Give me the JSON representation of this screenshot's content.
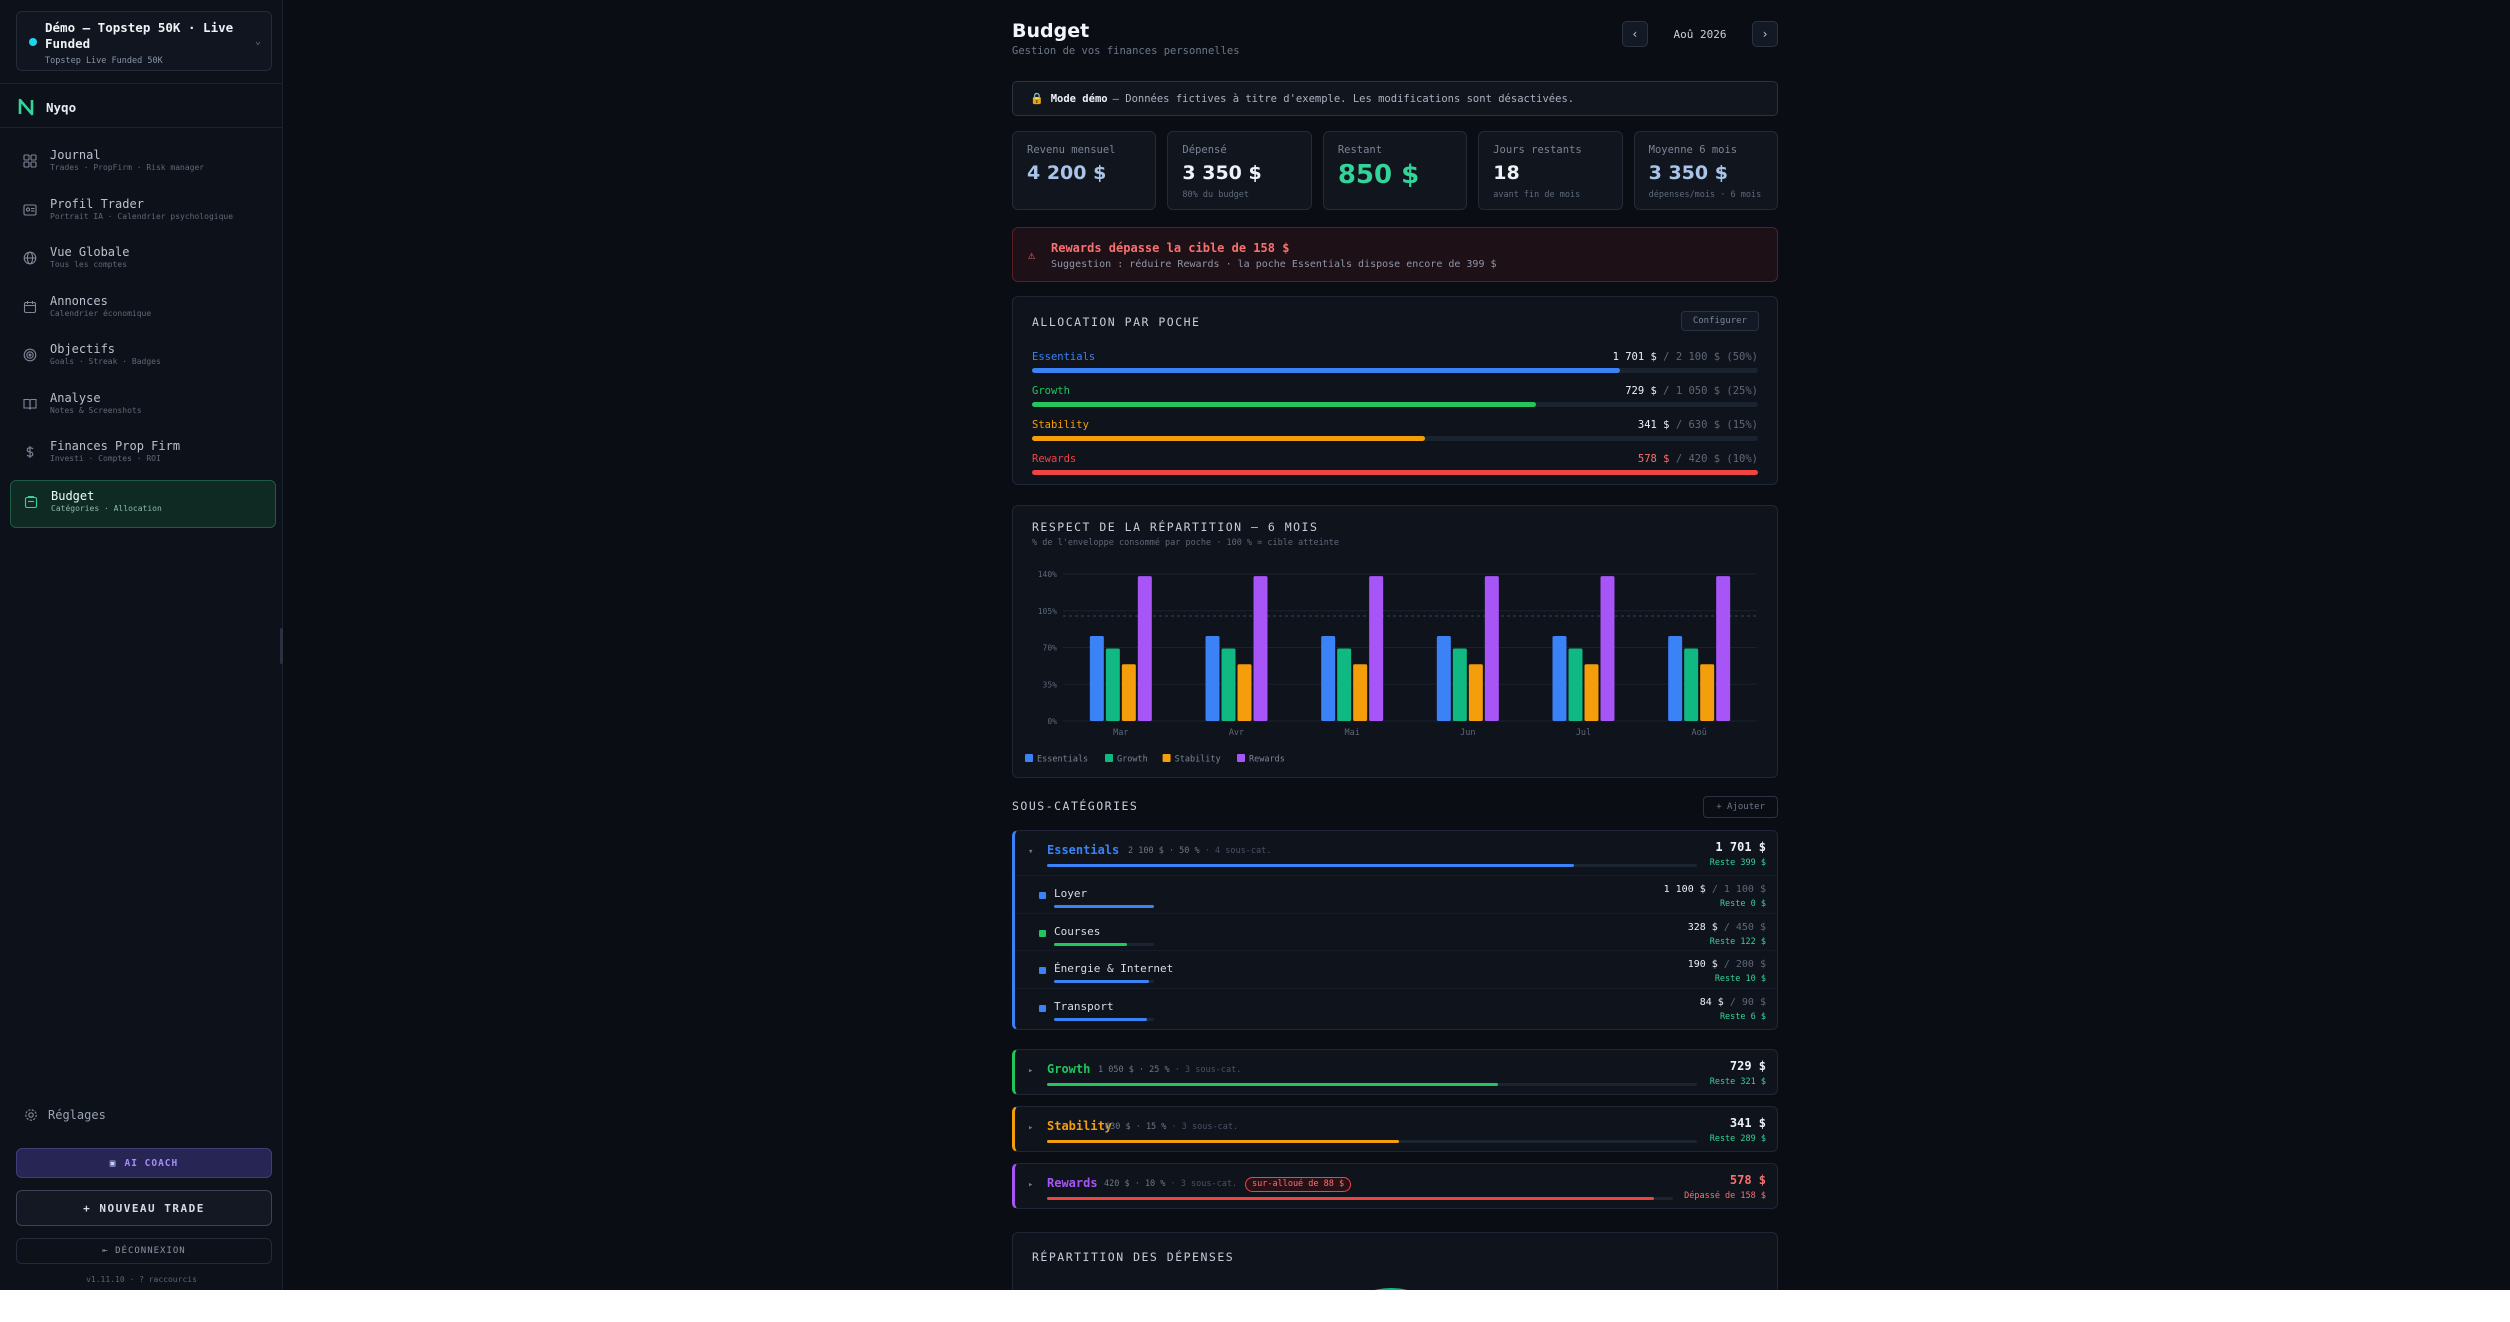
{
  "account": {
    "title": "Démo — Topstep 50K · Live Funded",
    "subtitle": "Topstep Live Funded 50K"
  },
  "brand": {
    "name": "Nyqo"
  },
  "nav": [
    {
      "label": "Journal",
      "sub": "Trades · PropFirm · Risk manager",
      "icon": "grid-icon"
    },
    {
      "label": "Profil Trader",
      "sub": "Portrait IA · Calendrier psychologique",
      "icon": "id-card-icon"
    },
    {
      "label": "Vue Globale",
      "sub": "Tous les comptes",
      "icon": "globe-icon"
    },
    {
      "label": "Annonces",
      "sub": "Calendrier économique",
      "icon": "calendar-icon"
    },
    {
      "label": "Objectifs",
      "sub": "Goals · Streak · Badges",
      "icon": "target-icon"
    },
    {
      "label": "Analyse",
      "sub": "Notes & Screenshots",
      "icon": "book-icon"
    },
    {
      "label": "Finances Prop Firm",
      "sub": "Investi · Comptes · ROI",
      "icon": "dollar-icon"
    },
    {
      "label": "Budget",
      "sub": "Catégories · Allocation",
      "icon": "wallet-icon",
      "active": true
    }
  ],
  "settings_label": "Réglages",
  "ai_coach_label": "AI COACH",
  "new_trade_label": "+ NOUVEAU TRADE",
  "logout_label": "⇤ DÉCONNEXION",
  "version_text": "v1.11.10 · ? raccourcis",
  "header": {
    "title": "Budget",
    "subtitle": "Gestion de vos finances personnelles",
    "month": "Aoû 2026",
    "prev": "‹",
    "next": "›"
  },
  "demo_banner": {
    "bold": "Mode démo",
    "text": "— Données fictives à titre d'exemple. Les modifications sont désactivées."
  },
  "stats": [
    {
      "label": "Revenu mensuel",
      "value": "4 200 $",
      "sub": "",
      "style": "blue"
    },
    {
      "label": "Dépensé",
      "value": "3 350 $",
      "sub": "80% du budget",
      "style": ""
    },
    {
      "label": "Restant",
      "value": "850 $",
      "sub": "",
      "style": "green"
    },
    {
      "label": "Jours restants",
      "value": "18",
      "sub": "avant fin de mois",
      "style": ""
    },
    {
      "label": "Moyenne 6 mois",
      "value": "3 350 $",
      "sub": "dépenses/mois · 6 mois",
      "style": "blue"
    }
  ],
  "alert": {
    "title": "Rewards dépasse la cible de 158 $",
    "text": "Suggestion : réduire Rewards · la poche Essentials dispose encore de 399 $"
  },
  "allocation": {
    "title": "ALLOCATION PAR POCHE",
    "configure_label": "Configurer",
    "rows": [
      {
        "name": "Essentials",
        "spent": "1 701 $",
        "target": "/ 2 100 $ (50%)",
        "fill": 0.81,
        "color": "#3b82f6",
        "over": false
      },
      {
        "name": "Growth",
        "spent": "729 $",
        "target": "/ 1 050 $ (25%)",
        "fill": 0.694,
        "color": "#22c55e",
        "over": false
      },
      {
        "name": "Stability",
        "spent": "341 $",
        "target": "/ 630 $ (15%)",
        "fill": 0.541,
        "color": "#f59e0b",
        "over": false
      },
      {
        "name": "Rewards",
        "spent": "578 $",
        "target": "/ 420 $ (10%)",
        "fill": 1.0,
        "color": "#ef4444",
        "over": true
      }
    ]
  },
  "chart": {
    "title": "RESPECT DE LA RÉPARTITION — 6 MOIS",
    "subtitle": "% de l'enveloppe consommé par poche · 100 % = cible atteinte"
  },
  "chart_data": {
    "type": "bar",
    "categories": [
      "Mar",
      "Avr",
      "Mai",
      "Jun",
      "Jul",
      "Aoû"
    ],
    "ylim": [
      0,
      140
    ],
    "yticks": [
      "0%",
      "35%",
      "70%",
      "105%",
      "140%"
    ],
    "reference_line": 100,
    "legend_position": "bottom-left",
    "series": [
      {
        "name": "Essentials",
        "color": "#3b82f6",
        "values": [
          81,
          81,
          81,
          81,
          81,
          81
        ]
      },
      {
        "name": "Growth",
        "color": "#10b981",
        "values": [
          69,
          69,
          69,
          69,
          69,
          69
        ]
      },
      {
        "name": "Stability",
        "color": "#f59e0b",
        "values": [
          54,
          54,
          54,
          54,
          54,
          54
        ]
      },
      {
        "name": "Rewards",
        "color": "#a855f7",
        "values": [
          138,
          138,
          138,
          138,
          138,
          138
        ]
      }
    ]
  },
  "subcategories": {
    "title": "SOUS-CATÉGORIES",
    "add_label": "+ Ajouter"
  },
  "pockets": [
    {
      "key": "essentials",
      "name": "Essentials",
      "color": "#3b82f6",
      "meta": "2 100 $ · 50 %",
      "meta_extra": "· 4 sous-cat.",
      "amount": "1 701 $",
      "rest": "Reste 399 $",
      "rest_red": false,
      "fill": 0.81,
      "caret": "▾",
      "items": [
        {
          "name": "Loyer",
          "spent": "1 100 $",
          "target": "/ 1 100 $",
          "rest": "Reste 0 $",
          "fill": 1.0
        },
        {
          "name": "Courses",
          "spent": "328 $",
          "target": "/ 450 $",
          "rest": "Reste 122 $",
          "fill": 0.73
        },
        {
          "name": "Énergie & Internet",
          "spent": "190 $",
          "target": "/ 200 $",
          "rest": "Reste 10 $",
          "fill": 0.95
        },
        {
          "name": "Transport",
          "spent": "84 $",
          "target": "/ 90 $",
          "rest": "Reste 6 $",
          "fill": 0.93
        }
      ]
    },
    {
      "key": "growth",
      "name": "Growth",
      "color": "#22c55e",
      "meta": "1 050 $ · 25 %",
      "meta_extra": "· 3 sous-cat.",
      "amount": "729 $",
      "rest": "Reste 321 $",
      "rest_red": false,
      "fill": 0.694,
      "caret": "▸",
      "items": []
    },
    {
      "key": "stability",
      "name": "Stability",
      "color": "#f59e0b",
      "meta": "630 $ · 15 %",
      "meta_extra": "· 3 sous-cat.",
      "amount": "341 $",
      "rest": "Reste 289 $",
      "rest_red": false,
      "fill": 0.541,
      "caret": "▸",
      "items": []
    },
    {
      "key": "rewards",
      "name": "Rewards",
      "color": "#a855f7",
      "meta": "420 $ · 10 %",
      "meta_extra": "· 3 sous-cat.",
      "badge": "sur-alloué de 88 $",
      "amount": "578 $",
      "rest": "Dépassé de 158 $",
      "rest_red": true,
      "fill": 0.97,
      "bar_color": "#ef4444",
      "caret": "▸",
      "items": []
    }
  ],
  "repartition": {
    "title": "RÉPARTITION DES DÉPENSES"
  }
}
